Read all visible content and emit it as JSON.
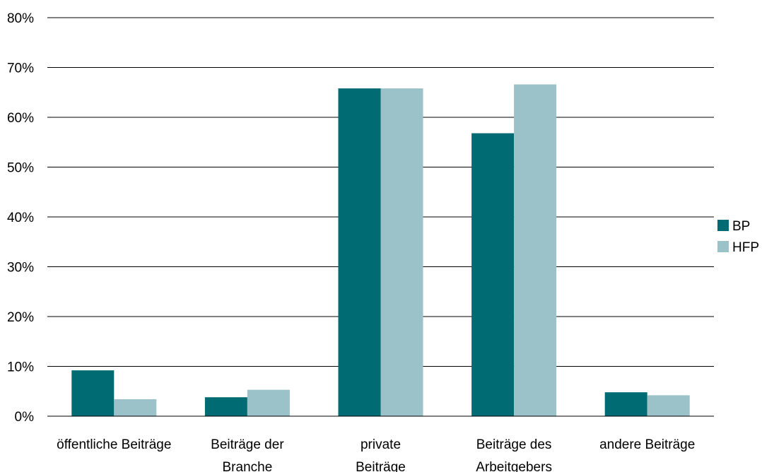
{
  "colors": {
    "bp": "#006b73",
    "hfp": "#9bc1c9",
    "grid": "#000000"
  },
  "chart_data": {
    "type": "bar",
    "categories": [
      [
        "öffentliche Beiträge"
      ],
      [
        "Beiträge der",
        "Branche"
      ],
      [
        "private",
        "Beiträge"
      ],
      [
        "Beiträge des",
        "Arbeitgebers"
      ],
      [
        "andere Beiträge"
      ]
    ],
    "series": [
      {
        "name": "BP",
        "values": [
          9.2,
          3.8,
          65.8,
          56.8,
          4.8
        ]
      },
      {
        "name": "HFP",
        "values": [
          3.4,
          5.3,
          65.8,
          66.6,
          4.2
        ]
      }
    ],
    "ylim": [
      0,
      80
    ],
    "yticks": [
      "0%",
      "10%",
      "20%",
      "30%",
      "40%",
      "50%",
      "60%",
      "70%",
      "80%"
    ],
    "grid": true,
    "legend_position": "right",
    "title": "",
    "xlabel": "",
    "ylabel": ""
  }
}
